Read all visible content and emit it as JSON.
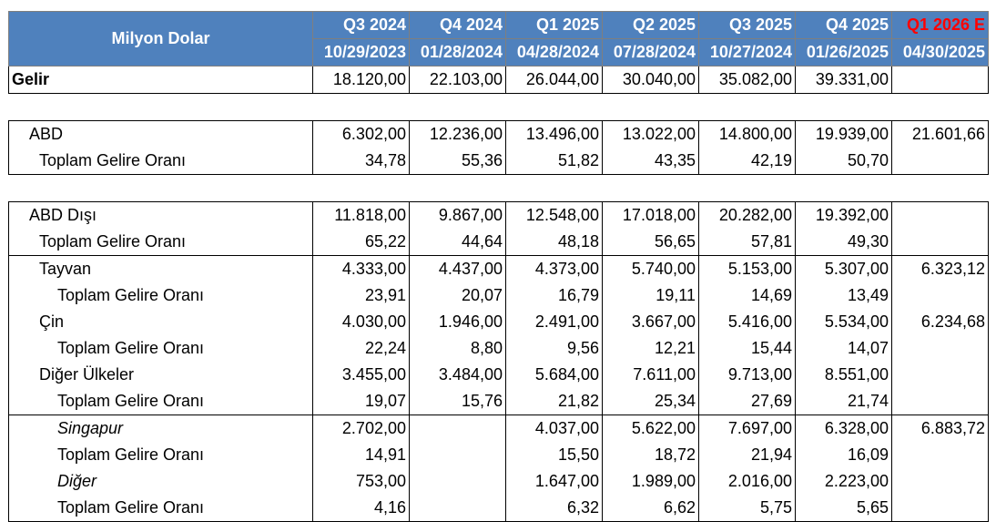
{
  "header": {
    "title": "Milyon Dolar",
    "quarters": [
      "Q3 2024",
      "Q4 2024",
      "Q1 2025",
      "Q2 2025",
      "Q3 2025",
      "Q4 2025",
      "Q1 2026 E"
    ],
    "dates": [
      "10/29/2023",
      "01/28/2024",
      "04/28/2024",
      "07/28/2024",
      "10/27/2024",
      "01/26/2025",
      "04/30/2025"
    ],
    "estimate_color": "#ff0000",
    "header_bg": "#4f81bd"
  },
  "revenue": {
    "label": "Gelir",
    "values": [
      "18.120,00",
      "22.103,00",
      "26.044,00",
      "30.040,00",
      "35.082,00",
      "39.331,00",
      ""
    ]
  },
  "usa": {
    "label": "ABD",
    "values": [
      "6.302,00",
      "12.236,00",
      "13.496,00",
      "13.022,00",
      "14.800,00",
      "19.939,00",
      "21.601,66"
    ],
    "share_label": "Toplam Gelire Oranı",
    "share": [
      "34,78",
      "55,36",
      "51,82",
      "43,35",
      "42,19",
      "50,70",
      ""
    ]
  },
  "non_usa": {
    "label": "ABD Dışı",
    "values": [
      "11.818,00",
      "9.867,00",
      "12.548,00",
      "17.018,00",
      "20.282,00",
      "19.392,00",
      ""
    ],
    "share_label": "Toplam Gelire Oranı",
    "share": [
      "65,22",
      "44,64",
      "48,18",
      "56,65",
      "57,81",
      "49,30",
      ""
    ]
  },
  "taiwan": {
    "label": "Tayvan",
    "values": [
      "4.333,00",
      "4.437,00",
      "4.373,00",
      "5.740,00",
      "5.153,00",
      "5.307,00",
      "6.323,12"
    ],
    "share_label": "Toplam Gelire Oranı",
    "share": [
      "23,91",
      "20,07",
      "16,79",
      "19,11",
      "14,69",
      "13,49",
      ""
    ]
  },
  "china": {
    "label": "Çin",
    "values": [
      "4.030,00",
      "1.946,00",
      "2.491,00",
      "3.667,00",
      "5.416,00",
      "5.534,00",
      "6.234,68"
    ],
    "share_label": "Toplam Gelire Oranı",
    "share": [
      "22,24",
      "8,80",
      "9,56",
      "12,21",
      "15,44",
      "14,07",
      ""
    ]
  },
  "other_countries": {
    "label": "Diğer Ülkeler",
    "values": [
      "3.455,00",
      "3.484,00",
      "5.684,00",
      "7.611,00",
      "9.713,00",
      "8.551,00",
      ""
    ],
    "share_label": "Toplam Gelire Oranı",
    "share": [
      "19,07",
      "15,76",
      "21,82",
      "25,34",
      "27,69",
      "21,74",
      ""
    ]
  },
  "singapore": {
    "label": "Singapur",
    "values": [
      "2.702,00",
      "",
      "4.037,00",
      "5.622,00",
      "7.697,00",
      "6.328,00",
      "6.883,72"
    ],
    "share_label": "Toplam Gelire Oranı",
    "share": [
      "14,91",
      "",
      "15,50",
      "18,72",
      "21,94",
      "16,09",
      ""
    ]
  },
  "other": {
    "label": "Diğer",
    "values": [
      "753,00",
      "",
      "1.647,00",
      "1.989,00",
      "2.016,00",
      "2.223,00",
      ""
    ],
    "share_label": "Toplam Gelire Oranı",
    "share": [
      "4,16",
      "",
      "6,32",
      "6,62",
      "5,75",
      "5,65",
      ""
    ]
  }
}
